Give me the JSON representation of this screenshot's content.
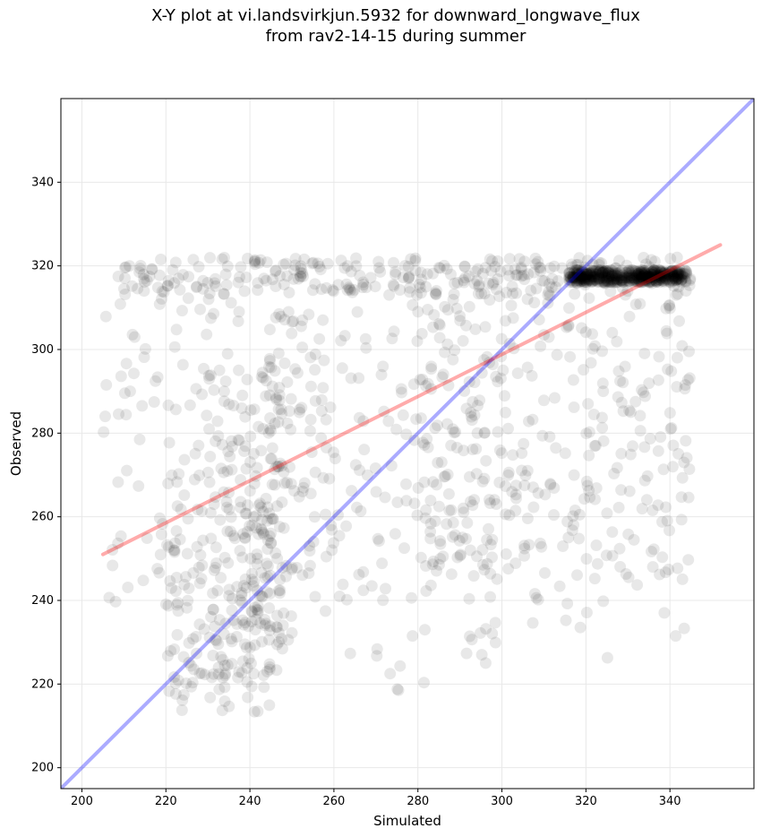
{
  "chart_data": {
    "type": "scatter",
    "title_line1": "X-Y plot at vi.landsvirkjun.5932 for downward_longwave_flux",
    "title_line2": "from rav2-14-15 during summer",
    "xlabel": "Simulated",
    "ylabel": "Observed",
    "xlim": [
      195,
      360
    ],
    "ylim": [
      195,
      360
    ],
    "xticks": [
      200,
      220,
      240,
      260,
      280,
      300,
      320,
      340
    ],
    "yticks": [
      200,
      220,
      240,
      260,
      280,
      300,
      320,
      340
    ],
    "grid": true,
    "point_color": "#000000",
    "point_alpha": 0.09,
    "series": [
      {
        "name": "one-to-one line",
        "kind": "line",
        "color": "#0000ff",
        "x": [
          195,
          360
        ],
        "y": [
          195,
          360
        ]
      },
      {
        "name": "regression fit",
        "kind": "line",
        "color": "#ff0000",
        "x": [
          205,
          352
        ],
        "y": [
          251,
          325
        ]
      }
    ],
    "clusters": [
      {
        "x": [
          316,
          344
        ],
        "y": [
          316,
          319
        ],
        "n": 520,
        "note": "dense band of simulated-high / observed ~317"
      },
      {
        "x": [
          210,
          345
        ],
        "y": [
          313,
          322
        ],
        "n": 260
      },
      {
        "x": [
          230,
          250
        ],
        "y": [
          222,
          300
        ],
        "n": 180
      },
      {
        "x": [
          220,
          245
        ],
        "y": [
          212,
          260
        ],
        "n": 120
      },
      {
        "x": [
          205,
          260
        ],
        "y": [
          235,
          318
        ],
        "n": 170
      },
      {
        "x": [
          245,
          300
        ],
        "y": [
          240,
          318
        ],
        "n": 180
      },
      {
        "x": [
          280,
          345
        ],
        "y": [
          245,
          315
        ],
        "n": 260
      },
      {
        "x": [
          290,
          345
        ],
        "y": [
          225,
          300
        ],
        "n": 70
      },
      {
        "x": [
          260,
          300
        ],
        "y": [
          218,
          250
        ],
        "n": 15
      }
    ]
  }
}
